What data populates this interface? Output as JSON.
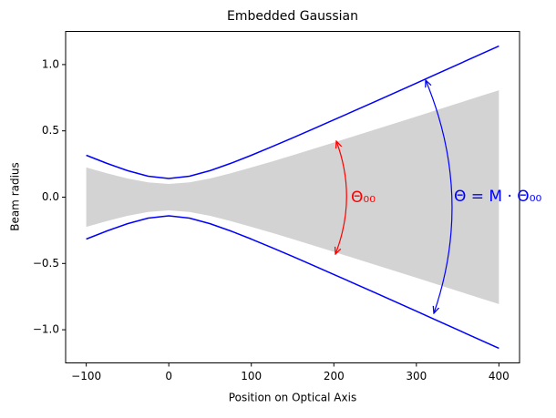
{
  "chart_data": {
    "type": "line",
    "title": "Embedded Gaussian",
    "x_label": "Position on Optical Axis",
    "y_label": "Beam radius",
    "x": [
      -100,
      -75,
      -50,
      -25,
      0,
      25,
      50,
      75,
      100,
      125,
      150,
      175,
      200,
      225,
      250,
      275,
      300,
      325,
      350,
      375,
      400
    ],
    "series": [
      {
        "color": "#0000ff",
        "values": [
          0.316,
          0.255,
          0.2,
          0.158,
          0.141,
          0.158,
          0.2,
          0.255,
          0.316,
          0.381,
          0.447,
          0.515,
          0.583,
          0.652,
          0.721,
          0.79,
          0.86,
          0.93,
          1.0,
          1.07,
          1.14
        ]
      },
      {
        "color": "#0000ff",
        "values": [
          -0.316,
          -0.255,
          -0.2,
          -0.158,
          -0.141,
          -0.158,
          -0.2,
          -0.255,
          -0.316,
          -0.381,
          -0.447,
          -0.515,
          -0.583,
          -0.652,
          -0.721,
          -0.79,
          -0.86,
          -0.93,
          -1.0,
          -1.07,
          -1.14
        ]
      }
    ],
    "fill_between": {
      "color": "#d3d3d3",
      "upper": [
        0.224,
        0.18,
        0.141,
        0.112,
        0.1,
        0.112,
        0.141,
        0.18,
        0.224,
        0.269,
        0.316,
        0.364,
        0.412,
        0.461,
        0.51,
        0.559,
        0.608,
        0.658,
        0.707,
        0.757,
        0.806
      ],
      "lower": [
        -0.224,
        -0.18,
        -0.141,
        -0.112,
        -0.1,
        -0.112,
        -0.141,
        -0.18,
        -0.224,
        -0.269,
        -0.316,
        -0.364,
        -0.412,
        -0.461,
        -0.51,
        -0.559,
        -0.608,
        -0.658,
        -0.707,
        -0.757,
        -0.806
      ]
    },
    "annotations": [
      {
        "text": "Θ₀₀",
        "color": "#ff0000"
      },
      {
        "text": "Θ = M · Θ₀₀",
        "color": "#0000ff"
      }
    ],
    "xlim": [
      -125,
      425
    ],
    "xticks": [
      {
        "value": -100,
        "label": "−100"
      },
      0,
      100,
      200,
      300,
      400
    ],
    "ylim": [
      -1.25,
      1.25
    ],
    "yticks": [
      {
        "value": -1.0,
        "label": "−1.0"
      },
      {
        "value": -0.5,
        "label": "−0.5"
      },
      {
        "value": 0,
        "label": "0.0"
      },
      {
        "value": 0.5,
        "label": "0.5"
      },
      {
        "value": 1.0,
        "label": "1.0"
      }
    ]
  }
}
